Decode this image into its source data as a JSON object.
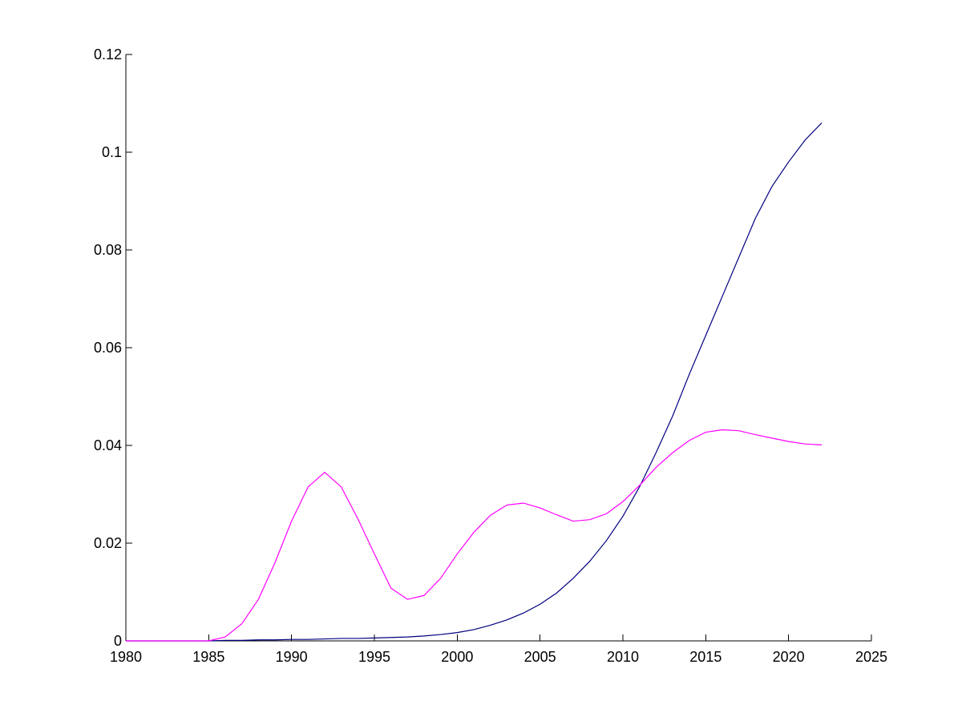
{
  "chart_data": {
    "type": "line",
    "title": "",
    "xlabel": "",
    "ylabel": "",
    "xlim": [
      1980,
      2025
    ],
    "ylim": [
      0,
      0.12
    ],
    "x_ticks": [
      1980,
      1985,
      1990,
      1995,
      2000,
      2005,
      2010,
      2015,
      2020,
      2025
    ],
    "y_ticks": [
      0,
      0.02,
      0.04,
      0.06,
      0.08,
      0.1,
      0.12
    ],
    "x_tick_labels": [
      "1980",
      "1985",
      "1990",
      "1995",
      "2000",
      "2005",
      "2010",
      "2015",
      "2020",
      "2025"
    ],
    "y_tick_labels": [
      "0",
      "0.02",
      "0.04",
      "0.06",
      "0.08",
      "0.1",
      "0.12"
    ],
    "grid": false,
    "legend": "none",
    "x": [
      1980,
      1981,
      1982,
      1983,
      1984,
      1985,
      1986,
      1987,
      1988,
      1989,
      1990,
      1991,
      1992,
      1993,
      1994,
      1995,
      1996,
      1997,
      1998,
      1999,
      2000,
      2001,
      2002,
      2003,
      2004,
      2005,
      2006,
      2007,
      2008,
      2009,
      2010,
      2011,
      2012,
      2013,
      2014,
      2015,
      2016,
      2017,
      2018,
      2019,
      2020,
      2021,
      2022
    ],
    "series": [
      {
        "color": "#00007f",
        "values": [
          0,
          0,
          0,
          0,
          0,
          0,
          0.0001,
          0.0001,
          0.0002,
          0.0002,
          0.0003,
          0.0003,
          0.0004,
          0.0005,
          0.0005,
          0.0006,
          0.0007,
          0.0008,
          0.001,
          0.0013,
          0.0017,
          0.0023,
          0.0032,
          0.0043,
          0.0057,
          0.0075,
          0.0098,
          0.0128,
          0.0163,
          0.0205,
          0.0255,
          0.0315,
          0.0385,
          0.046,
          0.0545,
          0.0625,
          0.0705,
          0.0785,
          0.0865,
          0.093,
          0.098,
          0.1025,
          0.106
        ]
      },
      {
        "color": "#ff00ff",
        "values": [
          0,
          0,
          0,
          0,
          0,
          0,
          0.0008,
          0.0035,
          0.0085,
          0.016,
          0.0245,
          0.0315,
          0.0345,
          0.0315,
          0.025,
          0.0178,
          0.0108,
          0.0085,
          0.0093,
          0.0128,
          0.0178,
          0.0222,
          0.0257,
          0.0278,
          0.0282,
          0.0272,
          0.0258,
          0.0245,
          0.0248,
          0.026,
          0.0285,
          0.0318,
          0.0355,
          0.0385,
          0.041,
          0.0427,
          0.0432,
          0.043,
          0.0422,
          0.0415,
          0.0408,
          0.0403,
          0.0401
        ]
      }
    ]
  }
}
